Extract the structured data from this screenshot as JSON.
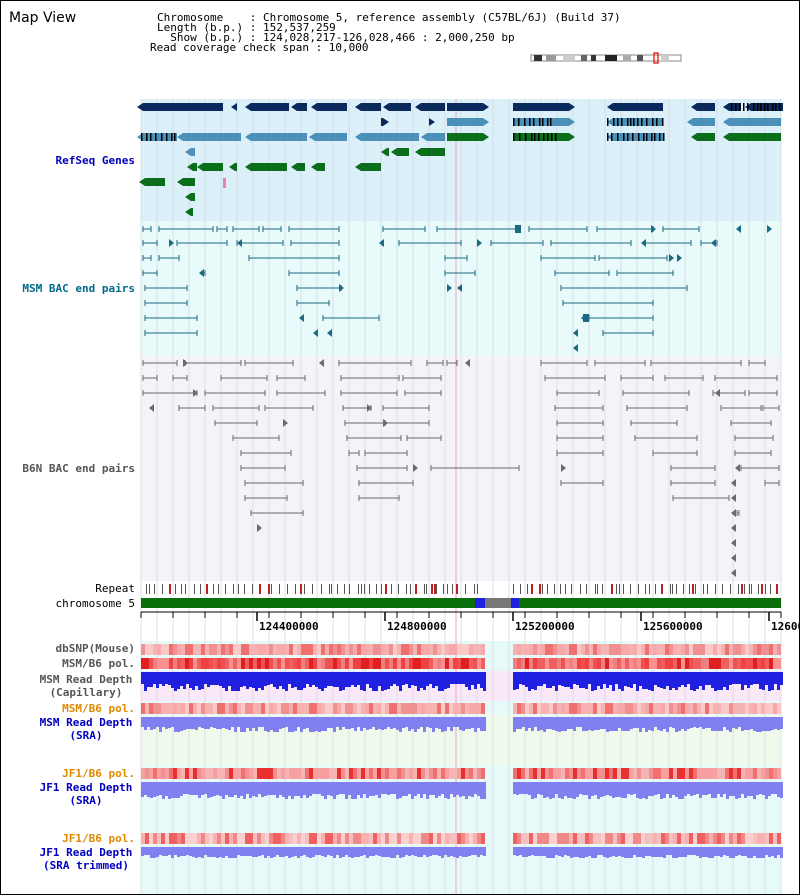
{
  "title": "Map View",
  "info": {
    "chromosome": "Chromosome    : Chromosome 5, reference assembly (C57BL/6J) (Build 37)",
    "length": "Length (b.p.) : 152,537,259",
    "show": "  Show (b.p.) : 124,028,217-126,028,466 : 2,000,250 bp",
    "coverage": "Read coverage check span : 10,000"
  },
  "tracks": {
    "refseq": "RefSeq Genes",
    "msm_bac": "MSM BAC end pairs",
    "b6n_bac": "B6N BAC end pairs",
    "repeat": "Repeat",
    "chromosome": "chromosome 5",
    "dbsnp": "dbSNP(Mouse)",
    "msm_b6_pol_1": "MSM/B6 pol.",
    "msm_read_depth_cap_1": "MSM Read Depth",
    "msm_read_depth_cap_2": "(Capillary)",
    "msm_b6_pol_2": "MSM/B6 pol.",
    "msm_read_depth_sra_1": "MSM Read Depth",
    "msm_read_depth_sra_2": "(SRA)",
    "jf1_b6_pol_1": "JF1/B6 pol.",
    "jf1_read_depth_sra_1": "JF1 Read Depth",
    "jf1_read_depth_sra_2": "(SRA)",
    "jf1_b6_pol_2": "JF1/B6 pol.",
    "jf1_read_depth_trim_1": "JF1 Read Depth",
    "jf1_read_depth_trim_2": "(SRA trimmed)"
  },
  "axis": {
    "ticks": [
      "124400000",
      "124800000",
      "125200000",
      "125600000",
      "12600"
    ]
  },
  "colors": {
    "refseq_bg": "#dcf0fa",
    "msm_bg": "#e8fafa",
    "b6n_bg": "#f4f4f8",
    "lower_bg": "#e6fafa",
    "cap_bg": "#f8e8f8",
    "sra_bg": "#f0faec",
    "gene_navy": "#0a2a5e",
    "gene_teal": "#4a90b8",
    "gene_green": "#0a6e1a",
    "bac_msm": "#1a6a82",
    "bac_b6n": "#6a6a6a",
    "depth_dark": "#2020e0",
    "depth_light": "#8080f0",
    "chrom_green": "#0a6e0a",
    "label_blue": "#0000c0",
    "label_teal": "#006a8a",
    "label_orange": "#e08a00"
  }
}
